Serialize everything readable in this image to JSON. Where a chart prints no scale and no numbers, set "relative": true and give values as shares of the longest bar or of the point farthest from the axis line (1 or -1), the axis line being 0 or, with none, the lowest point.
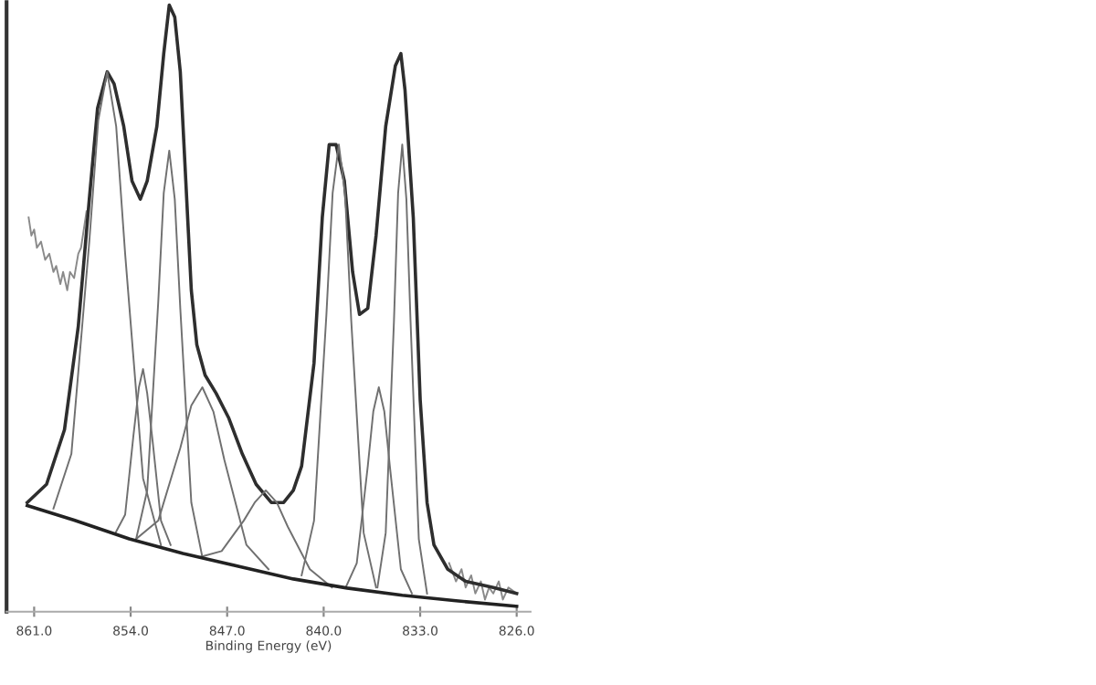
{
  "chart_data": {
    "type": "line",
    "relative": true,
    "xlabel": "Binding Energy (eV)",
    "xlim": [
      863,
      825
    ],
    "xticks": [
      {
        "value": 861,
        "label": "861.0"
      },
      {
        "value": 854,
        "label": "854.0"
      },
      {
        "value": 847,
        "label": "847.0"
      },
      {
        "value": 840,
        "label": "840.0"
      },
      {
        "value": 833,
        "label": "833.0"
      },
      {
        "value": 826,
        "label": "826.0"
      }
    ],
    "grid": false,
    "marker": "none",
    "line_style": "solid",
    "tick_labels": "x",
    "series": [
      {
        "color": "#8a8a8a",
        "x": [
          861.4,
          861.2,
          861.0,
          860.8,
          860.5,
          860.2,
          859.9,
          859.6,
          859.4,
          859.1,
          858.9,
          858.6,
          858.4,
          858.1,
          857.8,
          857.6,
          857.4,
          857.2,
          846.0,
          830.9,
          830.4,
          830.0,
          829.7,
          829.3,
          829.0,
          828.6,
          828.3,
          828.0,
          827.7,
          827.3,
          827.0,
          826.6,
          826.0
        ],
        "values": [
          0.65,
          0.62,
          0.63,
          0.6,
          0.61,
          0.58,
          0.59,
          0.56,
          0.57,
          0.54,
          0.56,
          0.53,
          0.56,
          0.55,
          0.59,
          0.6,
          0.63,
          0.66,
          null,
          0.08,
          0.05,
          0.07,
          0.04,
          0.06,
          0.03,
          0.05,
          0.02,
          0.04,
          0.03,
          0.05,
          0.02,
          0.04,
          0.03
        ]
      },
      {
        "color": "#2e2e2e",
        "x": [
          861.5,
          860.1,
          858.8,
          857.8,
          857.0,
          856.4,
          855.7,
          855.2,
          854.5,
          853.9,
          853.3,
          852.8,
          852.1,
          851.6,
          851.2,
          850.8,
          850.4,
          850.0,
          849.6,
          849.2,
          848.6,
          847.8,
          846.9,
          845.9,
          844.9,
          843.8,
          842.9,
          842.2,
          841.6,
          840.7,
          840.1,
          839.6,
          839.1,
          838.5,
          837.9,
          837.4,
          836.8,
          836.2,
          835.5,
          834.8,
          834.4,
          834.1,
          833.5,
          833.0,
          832.5,
          832.0,
          831.0,
          829.7,
          827.7,
          826.0
        ],
        "values": [
          0.18,
          0.21,
          0.3,
          0.47,
          0.68,
          0.83,
          0.89,
          0.87,
          0.8,
          0.71,
          0.68,
          0.71,
          0.8,
          0.92,
          1.0,
          0.98,
          0.89,
          0.71,
          0.53,
          0.44,
          0.39,
          0.36,
          0.32,
          0.26,
          0.21,
          0.18,
          0.18,
          0.2,
          0.24,
          0.41,
          0.65,
          0.77,
          0.77,
          0.71,
          0.56,
          0.49,
          0.5,
          0.62,
          0.8,
          0.9,
          0.92,
          0.86,
          0.65,
          0.35,
          0.18,
          0.11,
          0.07,
          0.05,
          0.04,
          0.03
        ]
      },
      {
        "color": "#707070",
        "x": [
          859.6,
          858.3,
          857.0,
          856.35,
          855.7,
          855.05,
          854.4,
          853.1,
          851.8
        ],
        "values": [
          0.17,
          0.26,
          0.61,
          0.81,
          0.89,
          0.8,
          0.59,
          0.22,
          0.11
        ]
      },
      {
        "color": "#707070",
        "x": [
          855.1,
          854.4,
          853.8,
          853.4,
          853.1,
          852.8,
          852.4,
          851.8,
          851.1
        ],
        "values": [
          0.13,
          0.16,
          0.29,
          0.37,
          0.4,
          0.36,
          0.28,
          0.15,
          0.11
        ]
      },
      {
        "color": "#707070",
        "x": [
          853.6,
          852.8,
          852.0,
          851.6,
          851.2,
          850.8,
          850.4,
          849.6,
          848.8
        ],
        "values": [
          0.12,
          0.2,
          0.51,
          0.69,
          0.76,
          0.68,
          0.5,
          0.18,
          0.09
        ]
      },
      {
        "color": "#707070",
        "x": [
          853.6,
          852.0,
          850.4,
          849.6,
          848.8,
          848.0,
          847.2,
          845.6,
          844.0
        ],
        "values": [
          0.12,
          0.15,
          0.27,
          0.34,
          0.37,
          0.33,
          0.25,
          0.11,
          0.07
        ]
      },
      {
        "color": "#707070",
        "x": [
          849.0,
          847.4,
          845.8,
          845.0,
          844.2,
          843.4,
          842.6,
          841.0,
          839.4
        ],
        "values": [
          0.09,
          0.1,
          0.15,
          0.18,
          0.2,
          0.18,
          0.14,
          0.07,
          0.04
        ]
      },
      {
        "color": "#707070",
        "x": [
          841.6,
          840.7,
          839.8,
          839.35,
          838.9,
          838.45,
          838.0,
          837.1,
          836.2
        ],
        "values": [
          0.06,
          0.15,
          0.49,
          0.69,
          0.77,
          0.69,
          0.48,
          0.13,
          0.04
        ]
      },
      {
        "color": "#707070",
        "x": [
          838.4,
          837.6,
          836.8,
          836.4,
          836.0,
          835.6,
          835.2,
          834.4,
          833.6
        ],
        "values": [
          0.04,
          0.08,
          0.24,
          0.33,
          0.37,
          0.33,
          0.24,
          0.07,
          0.03
        ]
      },
      {
        "color": "#707070",
        "x": [
          836.1,
          835.5,
          834.9,
          834.6,
          834.3,
          834.0,
          833.7,
          833.1,
          832.5
        ],
        "values": [
          0.04,
          0.13,
          0.48,
          0.69,
          0.77,
          0.68,
          0.48,
          0.12,
          0.03
        ]
      },
      {
        "color": "#222222",
        "x": [
          861.5,
          858.1,
          854.1,
          850.2,
          846.2,
          842.2,
          838.3,
          834.3,
          830.4,
          826.0
        ],
        "values": [
          0.175,
          0.151,
          0.12,
          0.096,
          0.075,
          0.054,
          0.039,
          0.027,
          0.018,
          0.009
        ]
      }
    ]
  }
}
